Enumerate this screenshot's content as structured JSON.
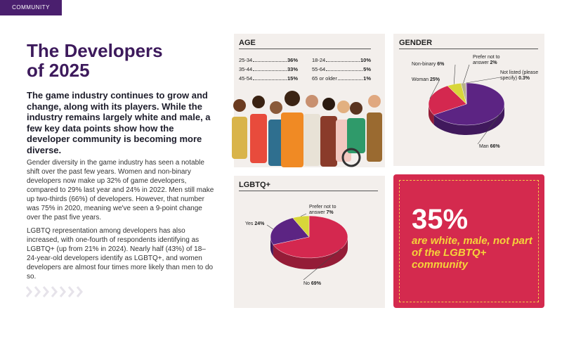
{
  "header": {
    "tag": "COMMUNITY",
    "title": "The Developers of 2025"
  },
  "lead": "The game industry continues to grow and change, along with its players. While the industry remains largely white and male, a few key data points show how the developer community is becoming more diverse.",
  "paragraphs": [
    "Gender diversity in the game industry has seen a notable shift over the past few years. Women and non-binary developers now make up 32% of game developers, compared to 29% last year and 24% in 2022. Men still make up two-thirds (66%) of developers. However, that number was 75% in 2020, meaning we've seen a 9-point change over the past five years.",
    "LGBTQ representation among developers has also increased, with one-fourth of respondents identifying as LGBTQ+ (up from 21% in 2024). Nearly half (43%) of 18–24-year-old developers identify as LGBTQ+, and women developers are almost four times more likely than men to do so."
  ],
  "age": {
    "title": "AGE",
    "rows": [
      {
        "label": "25-34",
        "value": "36%"
      },
      {
        "label": "35-44",
        "value": "33%"
      },
      {
        "label": "45-54",
        "value": "15%"
      },
      {
        "label": "18-24",
        "value": "10%"
      },
      {
        "label": "55-64",
        "value": "5%"
      },
      {
        "label": "65 or older",
        "value": "1%"
      }
    ]
  },
  "gender": {
    "type": "pie",
    "title": "GENDER",
    "categories": [
      "Man",
      "Woman",
      "Non-binary",
      "Prefer not to answer",
      "Not listed (please specify)"
    ],
    "values": [
      66,
      25,
      6,
      2,
      0.3
    ],
    "value_labels": [
      "66%",
      "25%",
      "6%",
      "2%",
      "0.3%"
    ],
    "colors": [
      "#5c2483",
      "#d4284f",
      "#d8d63a",
      "#b7b28a",
      "#8a44a8"
    ]
  },
  "lgbtq": {
    "type": "pie",
    "title": "LGBTQ+",
    "categories": [
      "No",
      "Yes",
      "Prefer not to answer"
    ],
    "values": [
      69,
      24,
      7
    ],
    "value_labels": [
      "69%",
      "24%",
      "7%"
    ],
    "colors": [
      "#d4284f",
      "#5c2483",
      "#d8d63a"
    ]
  },
  "callout": {
    "figure": "35%",
    "text": "are white, male, not part of the LGBTQ+ community"
  }
}
